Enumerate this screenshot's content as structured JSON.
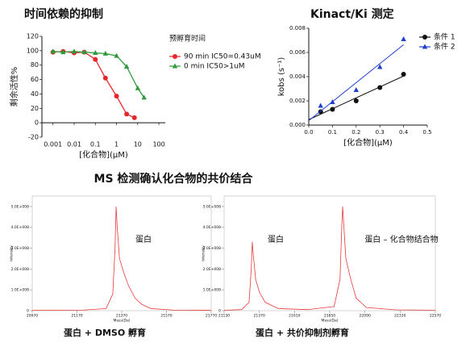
{
  "section_title": "MS 检测确认化合物的共价结合",
  "chart_data": [
    {
      "type": "line",
      "title": "时间依赖的抑制",
      "x_label": "[化合物](μM)",
      "y_label": "剩余活性%",
      "x_log": true,
      "xlim": [
        0.0003,
        200
      ],
      "xticks": [
        0.001,
        0.01,
        0.1,
        1,
        10,
        100
      ],
      "ylim": [
        -20,
        120
      ],
      "yticks": [
        -20,
        0,
        20,
        40,
        60,
        80,
        100,
        120
      ],
      "legend_title": "预孵育时间",
      "series": [
        {
          "name": "90 min IC50=0.43uM",
          "color": "#e8262a",
          "marker": "circle",
          "x": [
            0.001,
            0.003,
            0.01,
            0.03,
            0.1,
            0.3,
            1,
            3,
            7
          ],
          "values": [
            98,
            99,
            97,
            98,
            88,
            62,
            37,
            12,
            7
          ]
        },
        {
          "name": "0 min IC50>1uM",
          "color": "#2e9a3c",
          "marker": "triangle",
          "x": [
            0.001,
            0.003,
            0.01,
            0.03,
            0.1,
            0.3,
            1,
            3,
            10,
            20
          ],
          "values": [
            99,
            98,
            99,
            98,
            97,
            96,
            93,
            78,
            48,
            35
          ]
        }
      ]
    },
    {
      "type": "scatter",
      "title": "Kinact/Ki 测定",
      "x_label": "[化合物](μM)",
      "y_label": "kobs (s⁻¹)",
      "xlim": [
        0,
        0.5
      ],
      "xticks": [
        {
          "value": 0,
          "label": "0.0"
        },
        0.1,
        0.2,
        0.3,
        0.4,
        0.5
      ],
      "ylim": [
        0,
        0.008
      ],
      "yticks": [
        {
          "value": 0,
          "label": "0.000"
        },
        {
          "value": 0.002,
          "label": "0.002"
        },
        {
          "value": 0.004,
          "label": "0.004"
        },
        {
          "value": 0.006,
          "label": "0.006"
        },
        {
          "value": 0.008,
          "label": "0.008"
        }
      ],
      "series": [
        {
          "name": "条件 1",
          "color": "#111111",
          "marker": "circle",
          "x": [
            0.05,
            0.1,
            0.2,
            0.3,
            0.4
          ],
          "values": [
            0.0011,
            0.0013,
            0.002,
            0.0031,
            0.0042
          ]
        },
        {
          "name": "条件 2",
          "color": "#1f3fd0",
          "marker": "triangle",
          "x": [
            0.05,
            0.1,
            0.2,
            0.3,
            0.4
          ],
          "values": [
            0.0016,
            0.0019,
            0.0029,
            0.0048,
            0.0071
          ]
        }
      ]
    },
    {
      "type": "line",
      "x_label": "Mass(Da)",
      "y_label": "Intensity",
      "color": "#e8393a",
      "xlim": [
        20970,
        21770
      ],
      "xticks": [
        20970,
        21170,
        21370,
        21570,
        21770
      ],
      "ylim": [
        0,
        550000000
      ],
      "yticks": [
        {
          "value": 0,
          "label": "0"
        },
        {
          "value": 100000000,
          "label": "1.0E+008"
        },
        {
          "value": 200000000,
          "label": "2.0E+008"
        },
        {
          "value": 300000000,
          "label": "3.0E+008"
        },
        {
          "value": 400000000,
          "label": "4.0E+008"
        },
        {
          "value": 500000000,
          "label": "5.0E+008"
        }
      ],
      "x": [
        20970,
        21200,
        21300,
        21330,
        21340,
        21345,
        21350,
        21360,
        21380,
        21400,
        21430,
        21460,
        21500,
        21600,
        21770
      ],
      "values": [
        2000000,
        3000000,
        10000000,
        80000000,
        300000000,
        500000000,
        400000000,
        250000000,
        180000000,
        120000000,
        60000000,
        30000000,
        10000000,
        3000000,
        2000000
      ],
      "annotations": [
        "蛋白"
      ],
      "caption": "蛋白 + DMSO 孵育"
    },
    {
      "type": "line",
      "x_label": "Mass(Da)",
      "y_label": "Intensity",
      "color": "#e8393a",
      "xlim": [
        21130,
        22570
      ],
      "xticks": [
        21130,
        21370,
        21610,
        21850,
        22090,
        22330,
        22570
      ],
      "ylim": [
        0,
        550000000
      ],
      "yticks": [
        {
          "value": 0,
          "label": "0"
        },
        {
          "value": 100000000,
          "label": "1.0E+008"
        },
        {
          "value": 200000000,
          "label": "2.0E+008"
        },
        {
          "value": 300000000,
          "label": "3.0E+008"
        },
        {
          "value": 400000000,
          "label": "4.0E+008"
        },
        {
          "value": 500000000,
          "label": "5.0E+008"
        }
      ],
      "x": [
        21130,
        21250,
        21300,
        21315,
        21322,
        21330,
        21345,
        21370,
        21410,
        21500,
        21700,
        21880,
        21920,
        21932,
        21938,
        21945,
        21960,
        21990,
        22030,
        22100,
        22300,
        22570
      ],
      "values": [
        2000000,
        5000000,
        40000000,
        200000000,
        330000000,
        260000000,
        150000000,
        90000000,
        40000000,
        10000000,
        5000000,
        20000000,
        150000000,
        400000000,
        500000000,
        420000000,
        250000000,
        160000000,
        60000000,
        15000000,
        4000000,
        2000000
      ],
      "annotations": [
        "蛋白",
        "蛋白 – 化合物结合物"
      ],
      "caption": "蛋白 + 共价抑制剂孵育"
    }
  ]
}
